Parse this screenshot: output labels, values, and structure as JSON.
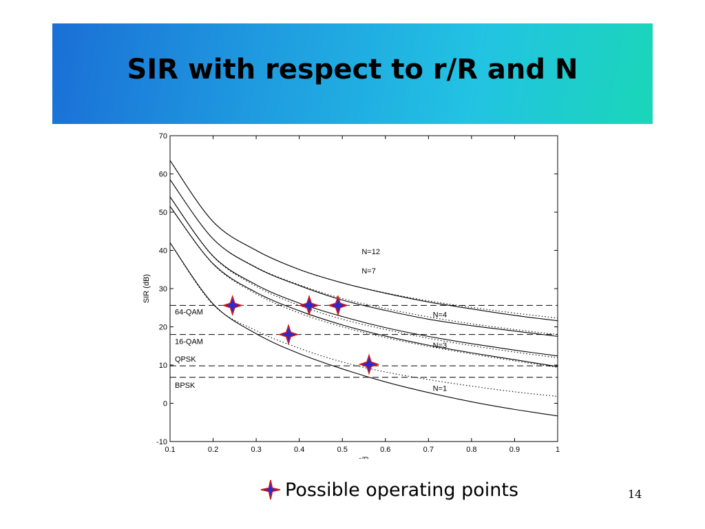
{
  "slide": {
    "title": "SIR with respect to r/R and N",
    "page_number": "14",
    "legend_label": "Possible operating points"
  },
  "colors": {
    "banner_start": "#1a6fd6",
    "banner_end": "#1ad6b8",
    "marker_fill": "#2a2ad0",
    "marker_outline": "#d01818"
  },
  "chart_data": {
    "type": "line",
    "xlabel": "r/R",
    "ylabel": "SIR (dB)",
    "xlim": [
      0.1,
      1
    ],
    "ylim": [
      -10,
      70
    ],
    "x_ticks": [
      "0.1",
      "0.2",
      "0.3",
      "0.4",
      "0.5",
      "0.6",
      "0.7",
      "0.8",
      "0.9",
      "1"
    ],
    "y_ticks": [
      "-10",
      "0",
      "10",
      "20",
      "30",
      "40",
      "50",
      "60",
      "70"
    ],
    "grid": false,
    "x": [
      0.1,
      0.2,
      0.3,
      0.4,
      0.5,
      0.6,
      0.7,
      0.8,
      0.9,
      1.0
    ],
    "series": [
      {
        "name": "N=12",
        "style": "solid",
        "values": [
          63.5,
          47.5,
          40.0,
          35.0,
          31.5,
          28.8,
          26.5,
          24.7,
          23.0,
          21.6
        ]
      },
      {
        "name": "N=12",
        "style": "dotted",
        "values": [
          63.5,
          47.5,
          40.0,
          35.0,
          31.5,
          28.9,
          26.8,
          25.1,
          23.6,
          22.3
        ]
      },
      {
        "name": "N=7",
        "style": "solid",
        "values": [
          58.5,
          43.0,
          35.5,
          30.8,
          27.0,
          24.3,
          22.0,
          20.3,
          18.9,
          17.5
        ]
      },
      {
        "name": "N=7",
        "style": "dotted",
        "values": [
          58.5,
          43.0,
          35.6,
          31.0,
          27.4,
          24.8,
          22.6,
          20.8,
          19.3,
          18.0
        ]
      },
      {
        "name": "N=4",
        "style": "solid",
        "values": [
          54.0,
          38.5,
          31.0,
          26.2,
          22.7,
          19.8,
          17.5,
          15.6,
          13.9,
          12.4
        ]
      },
      {
        "name": "N=4",
        "style": "dotted",
        "values": [
          54.0,
          38.4,
          30.6,
          25.6,
          22.0,
          19.3,
          17.0,
          15.1,
          13.4,
          11.9
        ]
      },
      {
        "name": "N=3",
        "style": "solid",
        "values": [
          51.5,
          36.5,
          29.0,
          24.2,
          20.5,
          17.6,
          15.2,
          13.2,
          11.4,
          9.6
        ]
      },
      {
        "name": "N=3",
        "style": "dotted",
        "values": [
          51.5,
          36.4,
          28.6,
          23.6,
          20.0,
          17.2,
          14.9,
          12.9,
          11.1,
          9.4
        ]
      },
      {
        "name": "N=1",
        "style": "solid",
        "values": [
          42.0,
          26.0,
          18.2,
          13.0,
          9.0,
          5.6,
          2.8,
          0.4,
          -1.6,
          -3.3
        ]
      },
      {
        "name": "N=1",
        "style": "dotted",
        "values": [
          42.0,
          25.8,
          19.0,
          14.4,
          10.8,
          8.2,
          6.2,
          4.5,
          3.0,
          1.8
        ]
      }
    ],
    "thresholds": [
      {
        "label": "64-QAM",
        "value": 25.6
      },
      {
        "label": "16-QAM",
        "value": 18.0
      },
      {
        "label": "QPSK",
        "value": 9.8
      },
      {
        "label": "BPSK",
        "value": 6.8
      }
    ],
    "operating_points": [
      {
        "x": 0.245,
        "y": 25.6
      },
      {
        "x": 0.423,
        "y": 25.6
      },
      {
        "x": 0.49,
        "y": 25.6
      },
      {
        "x": 0.375,
        "y": 18.0
      },
      {
        "x": 0.562,
        "y": 10.2
      }
    ]
  }
}
